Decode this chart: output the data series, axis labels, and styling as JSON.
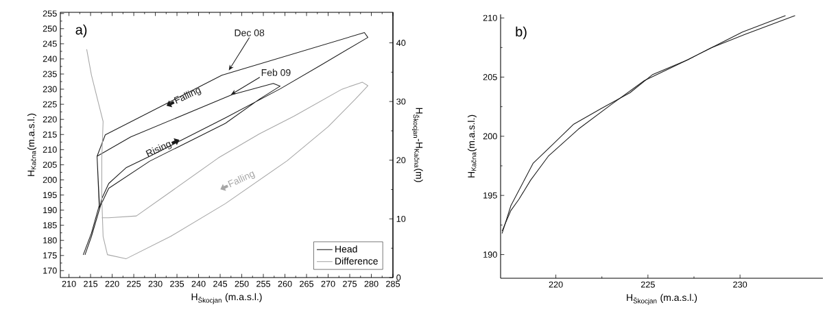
{
  "chart_data": [
    {
      "type": "line",
      "xlabel": "H$_{Škocjan}$ (m.a.s.l.)",
      "ylabel": "H$_{Kačna}$(m.a.s.l.)",
      "y2label": "H$_{Škocjan}$-H$_{Kačna}$(m)",
      "xlim": [
        208,
        285
      ],
      "xticks": [
        210,
        215,
        220,
        225,
        230,
        235,
        240,
        245,
        250,
        255,
        260,
        265,
        270,
        275,
        280,
        285
      ],
      "ylim": [
        167.7,
        255.4
      ],
      "yticks": [
        170,
        175,
        180,
        185,
        190,
        195,
        200,
        205,
        210,
        215,
        220,
        225,
        230,
        235,
        240,
        245,
        250,
        255
      ],
      "y2lim": [
        0,
        45.2
      ],
      "y2ticks": [
        0,
        10,
        20,
        30,
        40
      ],
      "legend": "bottom right",
      "series": [
        {
          "name": "Head",
          "color": "#1a1a1a",
          "x": [
            213.3,
            215.2,
            217.0,
            216.5,
            218.4,
            245.4,
            278.4,
            279.2,
            268.4,
            258.9,
            246.2,
            228.7,
            223.2,
            219.2,
            217.6,
            217.1,
            216.5,
            224.3,
            247.8,
            257.3,
            258.9,
            254.1,
            246.2,
            228.7,
            219.2,
            217.3,
            215.2,
            213.7
          ],
          "values": [
            175.2,
            182.4,
            191.5,
            207.8,
            214.9,
            234.6,
            248.7,
            247.1,
            238.0,
            230.1,
            220.5,
            207.8,
            204.0,
            198.8,
            193.8,
            190.4,
            207.8,
            214.2,
            228.2,
            231.9,
            231.0,
            226.7,
            218.7,
            206.2,
            197.2,
            191.5,
            181.3,
            175.2
          ]
        },
        {
          "name": "Difference",
          "color": "#a6a6a6",
          "axis": "y2",
          "x": [
            214.1,
            215.2,
            216.8,
            217.9,
            217.6,
            217.6,
            217.9,
            218.9,
            223.2,
            233.5,
            246.2,
            260.5,
            270.0,
            276.3,
            279.2,
            277.9,
            273.2,
            262.1,
            254.1,
            244.6,
            233.5,
            225.6,
            219.2,
            217.6
          ],
          "values": [
            38.9,
            34.5,
            29.8,
            26.6,
            20.4,
            13.4,
            7.0,
            3.9,
            3.2,
            7.0,
            12.6,
            19.9,
            25.7,
            30.4,
            32.7,
            33.3,
            32.1,
            27.5,
            24.5,
            20.4,
            14.6,
            10.5,
            10.2,
            10.2
          ]
        }
      ],
      "annotations": [
        "a)",
        {
          "text": "Dec 08",
          "x": 247,
          "y": 236.2
        },
        {
          "text": "Feb 09",
          "x": 247.5,
          "y": 228.2
        },
        {
          "text": "Falling",
          "x": 237.5,
          "y": 227.8
        },
        {
          "text": "Rising",
          "x": 230.8,
          "y": 210.1
        },
        "Falling"
      ]
    },
    {
      "type": "line",
      "xlabel": "H$_{Škocjan}$ (m.a.s.l.)",
      "ylabel": "H$_{Kačna}$(m.a.s.l.)",
      "xlim": [
        217.0,
        234.5
      ],
      "xticks": [
        220,
        225,
        230
      ],
      "ylim": [
        188,
        210.3
      ],
      "yticks": [
        190,
        195,
        200,
        205,
        210
      ],
      "series": [
        {
          "color": "#1a1a1a",
          "x": [
            217.08,
            217.56,
            218.77,
            219.74,
            220.97,
            222.47,
            224.03,
            225.26,
            227.14,
            228.44,
            230.13,
            232.47
          ],
          "values": [
            191.79,
            194.14,
            197.73,
            199.17,
            201.02,
            202.35,
            203.68,
            205.22,
            206.45,
            207.48,
            208.81,
            210.2
          ]
        },
        {
          "color": "#1a1a1a",
          "x": [
            217.08,
            217.56,
            217.99,
            218.63,
            219.61,
            221.23,
            222.99,
            224.81,
            227.14,
            228.44,
            230.26,
            232.99
          ],
          "values": [
            191.99,
            193.73,
            194.66,
            196.29,
            198.35,
            200.61,
            202.66,
            204.71,
            206.45,
            207.48,
            208.61,
            210.2
          ]
        }
      ],
      "annotations": [
        "b)"
      ]
    }
  ]
}
